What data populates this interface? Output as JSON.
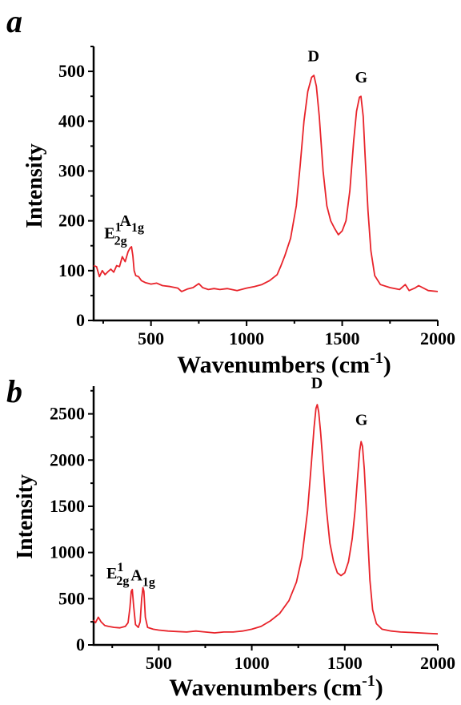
{
  "chart_data": [
    {
      "type": "line",
      "panel_label": "a",
      "title": "",
      "xlabel": "Wavenumbers",
      "xlabel_unit": "(cm",
      "xlabel_unit_exp": "-1",
      "xlabel_unit_end": ")",
      "ylabel": "Intensity",
      "xlim": [
        200,
        2000
      ],
      "ylim": [
        0,
        550
      ],
      "xticks": [
        500,
        1000,
        1500,
        2000
      ],
      "yticks": [
        0,
        100,
        200,
        300,
        400,
        500
      ],
      "grid": false,
      "color": "#e8232a",
      "annotations": [
        {
          "base": "E",
          "sup": "1",
          "sub": "2g",
          "x": 315,
          "y": 165
        },
        {
          "base": "A",
          "sub": "1g",
          "x": 400,
          "y": 190
        },
        {
          "base": "D",
          "x": 1350,
          "y": 520
        },
        {
          "base": "G",
          "x": 1600,
          "y": 478
        }
      ],
      "series": [
        {
          "x": [
            200,
            215,
            230,
            245,
            260,
            275,
            290,
            305,
            320,
            335,
            350,
            365,
            380,
            390,
            398,
            405,
            412,
            420,
            435,
            450,
            470,
            500,
            530,
            560,
            600,
            640,
            660,
            690,
            720,
            750,
            770,
            800,
            830,
            860,
            900,
            950,
            1000,
            1040,
            1080,
            1120,
            1160,
            1180,
            1200,
            1230,
            1260,
            1280,
            1300,
            1320,
            1340,
            1352,
            1365,
            1380,
            1400,
            1420,
            1440,
            1460,
            1480,
            1500,
            1520,
            1540,
            1560,
            1575,
            1590,
            1598,
            1610,
            1620,
            1635,
            1650,
            1670,
            1700,
            1750,
            1800,
            1830,
            1850,
            1880,
            1900,
            1950,
            2000
          ],
          "y": [
            110,
            108,
            88,
            100,
            92,
            98,
            103,
            97,
            110,
            108,
            128,
            118,
            138,
            145,
            148,
            130,
            100,
            90,
            88,
            80,
            76,
            73,
            75,
            70,
            68,
            65,
            58,
            63,
            66,
            74,
            66,
            62,
            64,
            62,
            64,
            60,
            65,
            68,
            72,
            80,
            92,
            110,
            130,
            165,
            230,
            310,
            400,
            460,
            488,
            492,
            470,
            410,
            300,
            230,
            200,
            185,
            172,
            180,
            200,
            260,
            360,
            420,
            448,
            450,
            410,
            330,
            220,
            140,
            90,
            72,
            66,
            62,
            72,
            60,
            65,
            70,
            60,
            58
          ]
        }
      ]
    },
    {
      "type": "line",
      "panel_label": "b",
      "title": "",
      "xlabel": "Wavenumbers",
      "xlabel_unit": "(cm",
      "xlabel_unit_exp": "-1",
      "xlabel_unit_end": ")",
      "ylabel": "Intensity",
      "xlim": [
        150,
        2000
      ],
      "ylim": [
        0,
        2800
      ],
      "xticks": [
        500,
        1000,
        1500,
        2000
      ],
      "yticks": [
        0,
        500,
        1000,
        1500,
        2000,
        2500
      ],
      "grid": false,
      "color": "#e8232a",
      "annotations": [
        {
          "base": "E",
          "sup": "1",
          "sub": "2g",
          "x": 280,
          "y": 720
        },
        {
          "base": "A",
          "sub": "1g",
          "x": 415,
          "y": 700
        },
        {
          "base": "D",
          "x": 1350,
          "y": 2780
        },
        {
          "base": "G",
          "x": 1590,
          "y": 2380
        }
      ],
      "series": [
        {
          "x": [
            150,
            160,
            175,
            190,
            210,
            230,
            260,
            290,
            320,
            335,
            345,
            352,
            358,
            365,
            375,
            390,
            400,
            408,
            415,
            420,
            428,
            440,
            470,
            500,
            550,
            600,
            650,
            700,
            750,
            800,
            850,
            900,
            950,
            1000,
            1050,
            1100,
            1150,
            1200,
            1240,
            1270,
            1300,
            1320,
            1335,
            1345,
            1352,
            1360,
            1370,
            1385,
            1400,
            1420,
            1440,
            1460,
            1480,
            1500,
            1520,
            1540,
            1555,
            1570,
            1580,
            1588,
            1595,
            1605,
            1620,
            1635,
            1650,
            1670,
            1700,
            1750,
            1800,
            1850,
            1900,
            1950,
            2000
          ],
          "y": [
            270,
            240,
            300,
            250,
            210,
            200,
            190,
            185,
            200,
            240,
            400,
            580,
            600,
            420,
            220,
            190,
            250,
            500,
            620,
            580,
            300,
            190,
            170,
            160,
            150,
            145,
            140,
            150,
            140,
            130,
            140,
            140,
            150,
            170,
            200,
            260,
            340,
            480,
            680,
            950,
            1450,
            1950,
            2350,
            2560,
            2600,
            2520,
            2300,
            1900,
            1500,
            1100,
            900,
            780,
            750,
            780,
            900,
            1150,
            1450,
            1850,
            2100,
            2200,
            2150,
            1900,
            1300,
            700,
            380,
            230,
            170,
            150,
            140,
            135,
            130,
            125,
            120
          ]
        }
      ]
    }
  ]
}
